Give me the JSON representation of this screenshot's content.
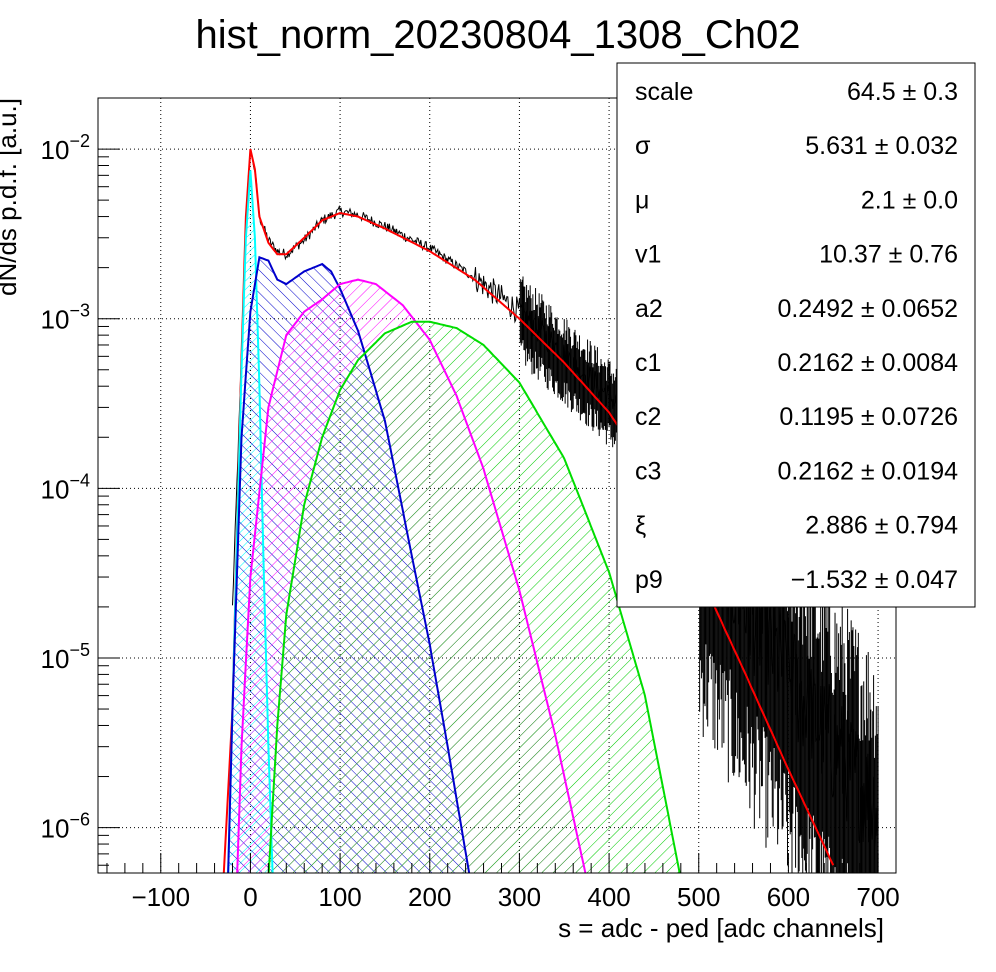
{
  "chart_data": {
    "type": "line",
    "title": "hist_norm_20230804_1308_Ch02",
    "xlabel": "s = adc - ped [adc channels]",
    "ylabel": "dN/ds p.d.f. [a.u.]",
    "xlim": [
      -170,
      720
    ],
    "ylim": [
      5.4e-07,
      0.02
    ],
    "ylog": true,
    "grid": true,
    "x_ticks": [
      -100,
      0,
      100,
      200,
      300,
      400,
      500,
      600,
      700
    ],
    "x_tick_labels": [
      "−100",
      "0",
      "100",
      "200",
      "300",
      "400",
      "500",
      "600",
      "700"
    ],
    "y_ticks": [
      {
        "value": 1e-06,
        "base": "10",
        "exp": "−6"
      },
      {
        "value": 1e-05,
        "base": "10",
        "exp": "−5"
      },
      {
        "value": 0.0001,
        "base": "10",
        "exp": "−4"
      },
      {
        "value": 0.001,
        "base": "10",
        "exp": "−3"
      },
      {
        "value": 0.01,
        "base": "10",
        "exp": "−2"
      }
    ],
    "data_points": {
      "x": [
        -20,
        -10,
        -5,
        0,
        5,
        10,
        20,
        30,
        40,
        60,
        80,
        100,
        120,
        150,
        200,
        250,
        300,
        350,
        400,
        430,
        450,
        500,
        550,
        600,
        650,
        700
      ],
      "y": [
        2e-05,
        0.0006,
        0.004,
        0.0098,
        0.0075,
        0.004,
        0.0029,
        0.0025,
        0.0024,
        0.0029,
        0.0038,
        0.0043,
        0.0041,
        0.0035,
        0.0026,
        0.00175,
        0.0011,
        0.00062,
        0.00035,
        0.00025,
        0.00018,
        6.5e-05,
        2.2e-05,
        8e-06,
        3e-06,
        1.3e-06
      ]
    },
    "series": [
      {
        "color": "#ff0000",
        "x": [
          -30,
          -20,
          -10,
          -5,
          0,
          5,
          10,
          20,
          30,
          40,
          60,
          80,
          100,
          120,
          150,
          200,
          250,
          300,
          350,
          400,
          450,
          500,
          550,
          600,
          650
        ],
        "y": [
          5e-07,
          5e-06,
          0.0006,
          0.004,
          0.01,
          0.0076,
          0.004,
          0.0028,
          0.0024,
          0.0024,
          0.003,
          0.0038,
          0.0042,
          0.004,
          0.0034,
          0.0025,
          0.0017,
          0.001,
          0.00055,
          0.00028,
          0.00011,
          3.2e-05,
          8.5e-06,
          2.2e-06,
          6e-07
        ]
      },
      {
        "color": "#00ffff",
        "fill": true,
        "x": [
          -25,
          -20,
          -15,
          -10,
          -5,
          0,
          5,
          10,
          15,
          20,
          25
        ],
        "y": [
          5e-07,
          5e-06,
          5e-05,
          0.0005,
          0.003,
          0.0075,
          0.003,
          0.0004,
          3e-05,
          3e-06,
          5e-07
        ]
      },
      {
        "color": "#0000cc",
        "fill": true,
        "x": [
          -25,
          -20,
          -10,
          0,
          10,
          20,
          30,
          40,
          60,
          80,
          90,
          100,
          120,
          150,
          180,
          200,
          220,
          245
        ],
        "y": [
          5e-07,
          5e-06,
          0.0002,
          0.0011,
          0.0023,
          0.0022,
          0.0017,
          0.0016,
          0.0019,
          0.0021,
          0.0019,
          0.0015,
          0.00085,
          0.00025,
          4e-05,
          1.2e-05,
          3e-06,
          5e-07
        ]
      },
      {
        "color": "#ff00ff",
        "fill": true,
        "x": [
          -15,
          -10,
          0,
          20,
          40,
          60,
          80,
          100,
          120,
          140,
          170,
          200,
          230,
          260,
          300,
          340,
          375
        ],
        "y": [
          5e-07,
          3e-06,
          3e-05,
          0.0003,
          0.0008,
          0.0011,
          0.0013,
          0.0016,
          0.0017,
          0.0016,
          0.0012,
          0.00075,
          0.00035,
          0.00013,
          2.5e-05,
          3.5e-06,
          5e-07
        ]
      },
      {
        "color": "#00dd00",
        "fill": true,
        "x": [
          20,
          30,
          40,
          60,
          80,
          100,
          120,
          150,
          180,
          200,
          230,
          260,
          300,
          350,
          400,
          440,
          480
        ],
        "y": [
          5e-07,
          4e-06,
          1.8e-05,
          8e-05,
          0.0002,
          0.00038,
          0.00057,
          0.00082,
          0.00096,
          0.00096,
          0.00088,
          0.0007,
          0.00042,
          0.00015,
          3.2e-05,
          6e-06,
          5e-07
        ]
      }
    ],
    "legend_position": "top-right",
    "stats": [
      {
        "name": "scale",
        "value": "64.5 ± 0.3"
      },
      {
        "name": "σ",
        "value": "5.631 ± 0.032"
      },
      {
        "name": "μ",
        "value": "2.1 ± 0.0"
      },
      {
        "name": "v1",
        "value": "10.37 ± 0.76"
      },
      {
        "name": "a2",
        "value": "0.2492 ± 0.0652"
      },
      {
        "name": "c1",
        "value": "0.2162 ± 0.0084"
      },
      {
        "name": "c2",
        "value": "0.1195 ± 0.0726"
      },
      {
        "name": "c3",
        "value": "0.2162 ± 0.0194"
      },
      {
        "name": "ξ",
        "value": "2.886 ± 0.794"
      },
      {
        "name": "p9",
        "value": "−1.532 ± 0.047"
      }
    ]
  }
}
